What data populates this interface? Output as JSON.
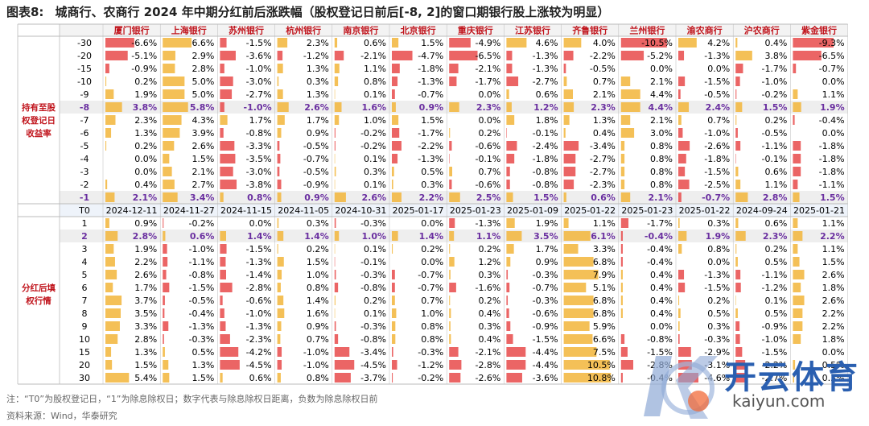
{
  "title": {
    "fig_label": "图表8:",
    "text": "城商行、农商行 2024 年中期分红前后涨跌幅（股权登记日前后[-8, 2]的窗口期银行股上涨较为明显）"
  },
  "chart_data": {
    "type": "table",
    "banks": [
      "厦门银行",
      "上海银行",
      "苏州银行",
      "杭州银行",
      "南京银行",
      "北京银行",
      "重庆银行",
      "江苏银行",
      "齐鲁银行",
      "兰州银行",
      "渝农商行",
      "沪农商行",
      "紫金银行"
    ],
    "section1": {
      "label": "持有至股权登记日收益率",
      "rows": [
        {
          "k": "-30",
          "v": [
            -6.6,
            6.6,
            -1.5,
            2.3,
            0.6,
            1.5,
            -4.9,
            4.6,
            4.0,
            -10.5,
            4.2,
            0.4,
            -9.3
          ]
        },
        {
          "k": "-20",
          "v": [
            -5.1,
            2.9,
            -3.6,
            -1.2,
            -2.1,
            -4.7,
            -6.5,
            -1.3,
            -2.2,
            -5.2,
            -1.3,
            3.8,
            -6.5
          ]
        },
        {
          "k": "-15",
          "v": [
            -0.9,
            2.8,
            -1.0,
            1.3,
            1.1,
            -1.8,
            -2.1,
            -1.3,
            -0.5,
            0.0,
            0.0,
            -1.7,
            -0.7
          ]
        },
        {
          "k": "-10",
          "v": [
            0.2,
            5.0,
            -3.0,
            0.3,
            0.8,
            -1.3,
            -1.7,
            -2.7,
            0.7,
            2.1,
            -1.5,
            -1.0,
            0.0
          ]
        },
        {
          "k": "-9",
          "v": [
            1.9,
            5.0,
            -2.7,
            1.3,
            0.1,
            -0.7,
            0.0,
            0.6,
            2.1,
            4.4,
            -0.5,
            -0.2,
            1.1
          ]
        },
        {
          "k": "-8",
          "v": [
            3.8,
            5.8,
            -1.0,
            2.6,
            1.6,
            0.9,
            2.3,
            1.2,
            2.3,
            4.4,
            2.4,
            1.5,
            1.9
          ],
          "highlight": true
        },
        {
          "k": "-7",
          "v": [
            2.3,
            4.3,
            1.7,
            1.7,
            1.0,
            1.5,
            0.0,
            1.8,
            1.3,
            2.1,
            0.7,
            0.2,
            -0.4
          ]
        },
        {
          "k": "-6",
          "v": [
            1.3,
            3.9,
            -0.8,
            0.9,
            -0.2,
            -1.7,
            0.2,
            -0.1,
            0.4,
            3.0,
            -1.0,
            -0.5,
            0.0
          ]
        },
        {
          "k": "-5",
          "v": [
            0.2,
            2.6,
            -3.3,
            -0.5,
            -0.2,
            -2.2,
            -0.6,
            -2.4,
            -3.4,
            0.8,
            -2.6,
            -1.1,
            -1.8
          ]
        },
        {
          "k": "-4",
          "v": [
            0.0,
            1.5,
            -3.5,
            -0.7,
            0.1,
            -1.3,
            -0.1,
            -1.8,
            -2.7,
            0.8,
            -1.8,
            -0.1,
            -1.8
          ]
        },
        {
          "k": "-3",
          "v": [
            0.0,
            2.1,
            -3.0,
            -0.5,
            0.3,
            0.5,
            0.7,
            -0.8,
            -2.7,
            0.8,
            -1.5,
            0.6,
            -1.8
          ]
        },
        {
          "k": "-2",
          "v": [
            0.4,
            2.7,
            -3.8,
            -0.9,
            0.1,
            0.3,
            -0.6,
            -0.8,
            -2.3,
            0.8,
            -2.5,
            1.1,
            -1.1
          ]
        },
        {
          "k": "-1",
          "v": [
            2.1,
            3.4,
            0.8,
            0.9,
            2.6,
            2.2,
            2.5,
            1.5,
            0.6,
            2.1,
            -0.7,
            2.8,
            1.5
          ],
          "highlight": true
        }
      ]
    },
    "t0": {
      "k": "T0",
      "dates": [
        "2024-12-11",
        "2024-11-27",
        "2024-11-15",
        "2024-11-05",
        "2024-10-31",
        "2025-01-17",
        "2025-01-23",
        "2025-01-09",
        "2025-01-22",
        "2025-01-23",
        "2025-01-22",
        "2024-09-24",
        "2025-01-21"
      ]
    },
    "section2": {
      "label": "分红后填权行情",
      "rows": [
        {
          "k": "1",
          "v": [
            0.9,
            -0.2,
            0.0,
            0.3,
            -0.3,
            0.0,
            -1.3,
            1.9,
            1.1,
            -1.7,
            0.3,
            0.6,
            1.1
          ]
        },
        {
          "k": "2",
          "v": [
            2.8,
            0.6,
            1.4,
            1.4,
            1.0,
            1.4,
            1.1,
            3.5,
            6.1,
            -0.4,
            1.9,
            2.3,
            2.2
          ],
          "highlight": true
        },
        {
          "k": "3",
          "v": [
            1.9,
            -1.0,
            -1.5,
            0.2,
            0.1,
            0.2,
            0.2,
            1.7,
            3.3,
            -0.4,
            0.8,
            0.2,
            1.1
          ]
        },
        {
          "k": "4",
          "v": [
            2.2,
            -1.1,
            -1.3,
            1.5,
            -0.1,
            0.0,
            1.2,
            0.9,
            6.8,
            -0.4,
            0.0,
            0.5,
            1.5
          ]
        },
        {
          "k": "5",
          "v": [
            2.6,
            -0.8,
            -1.4,
            1.0,
            -0.3,
            -0.7,
            0.3,
            -0.3,
            7.9,
            0.4,
            -1.3,
            -1.1,
            2.6
          ]
        },
        {
          "k": "6",
          "v": [
            1.7,
            -1.5,
            -2.8,
            0.8,
            -0.8,
            -0.7,
            -1.6,
            -0.7,
            5.1,
            0.4,
            -1.5,
            -1.2,
            1.8
          ]
        },
        {
          "k": "7",
          "v": [
            3.7,
            -0.5,
            -0.6,
            1.4,
            0.2,
            0.7,
            0.2,
            -0.3,
            6.8,
            0.4,
            0.2,
            0.1,
            2.6
          ]
        },
        {
          "k": "8",
          "v": [
            3.5,
            -0.4,
            -1.0,
            1.6,
            0.1,
            1.0,
            0.4,
            -0.6,
            6.8,
            0.4,
            0.5,
            0.5,
            2.2
          ]
        },
        {
          "k": "9",
          "v": [
            3.3,
            -1.3,
            -1.3,
            0.9,
            -0.3,
            0.8,
            0.3,
            -0.9,
            5.9,
            0.0,
            0.3,
            -0.9,
            2.2
          ]
        },
        {
          "k": "10",
          "v": [
            2.8,
            -0.3,
            -2.3,
            0.7,
            -0.8,
            0.8,
            0.4,
            -1.5,
            6.6,
            -0.8,
            -0.3,
            -1.0,
            1.8
          ]
        },
        {
          "k": "15",
          "v": [
            1.3,
            0.5,
            -4.2,
            -1.0,
            -3.4,
            -0.3,
            -2.1,
            -4.4,
            7.5,
            -1.5,
            -2.9,
            -1.5,
            0.0
          ]
        },
        {
          "k": "20",
          "v": [
            1.5,
            1.3,
            -4.5,
            -1.0,
            -4.5,
            -1.2,
            -2.8,
            -4.4,
            10.5,
            -2.8,
            -3.1,
            -2.2,
            0.5
          ]
        },
        {
          "k": "30",
          "v": [
            5.4,
            1.5,
            0.6,
            0.8,
            -3.7,
            -0.2,
            -2.6,
            -3.6,
            10.8,
            -0.4,
            -4.6,
            -2.7,
            0.3
          ]
        }
      ]
    },
    "colors": {
      "neg_bar": "#e84a4a",
      "pos_bar": "#f2b53a",
      "highlight_text": "#6a2fa0",
      "highlight_bg": "#eeeeee",
      "header_text": "#c0141c",
      "section_label": "#c0141c",
      "grid": "#bbbbbb"
    }
  },
  "notes": {
    "note": "注：“T0”为股权登记日，“1”为除息除权日；数字代表与除息除权日距离，负数为除息除权日前",
    "source": "资料来源：Wind，华泰研究"
  },
  "watermark": {
    "cn": "开云体育",
    "en": "kaiyun.com"
  }
}
